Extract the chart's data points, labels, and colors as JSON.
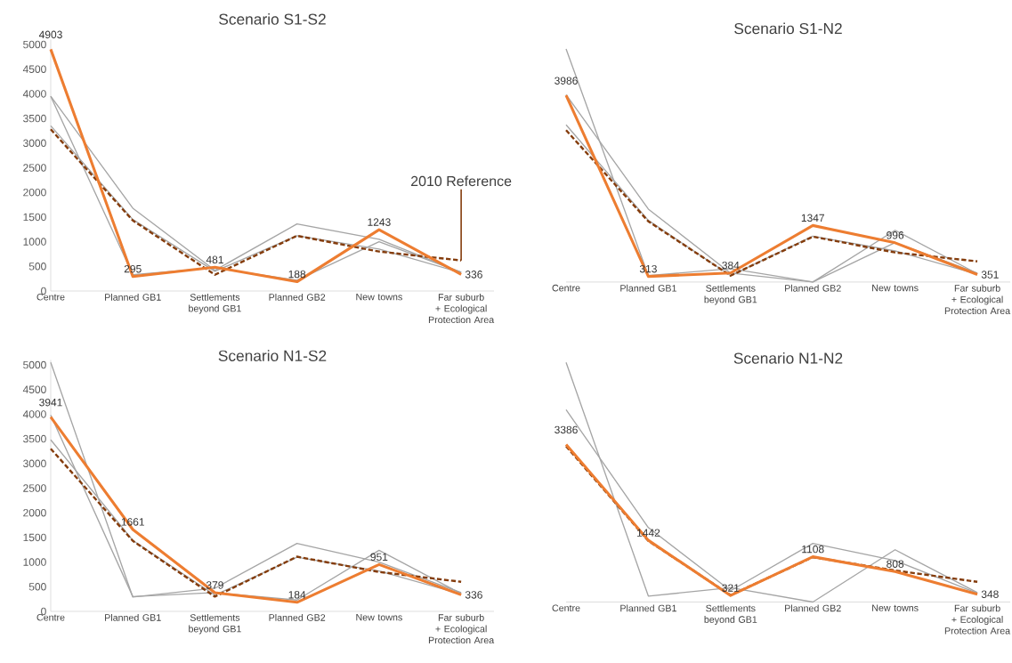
{
  "chart_data": [
    {
      "type": "line",
      "title": "Scenario S1-S2",
      "categories": [
        "Centre",
        "Planned GB1",
        "Settlements beyond GB1",
        "Planned GB2",
        "New towns",
        "Far suburb + Ecological Protection Area"
      ],
      "ylim": [
        0,
        5100
      ],
      "yticks": [
        0,
        500,
        1000,
        1500,
        2000,
        2500,
        3000,
        3500,
        4000,
        4500,
        5000
      ],
      "annotations": [
        {
          "text": "2010 Reference",
          "x": "Far suburb + Ecological Protection Area",
          "y": 620
        }
      ],
      "series": [
        {
          "color": "#a5a5a5",
          "values": [
            3950,
            1680,
            420,
            1360,
            1050,
            380
          ]
        },
        {
          "color": "#a5a5a5",
          "values": [
            3950,
            330,
            470,
            220,
            1000,
            380
          ]
        },
        {
          "color": "#a5a5a5",
          "values": [
            3350,
            1450,
            400,
            1120,
            850,
            370
          ]
        },
        {
          "color": "#843c0c",
          "line_style": "dashed",
          "values": [
            3280,
            1430,
            330,
            1120,
            800,
            620
          ]
        },
        {
          "color": "#ed7d31",
          "values": [
            4903,
            295,
            481,
            188,
            1243,
            336
          ],
          "value_labels": [
            "4903",
            "295",
            "481",
            "188",
            "1243",
            "336"
          ]
        }
      ]
    },
    {
      "type": "line",
      "title": "Scenario S1-N2",
      "categories": [
        "Centre",
        "Planned GB1",
        "Settlements beyond GB1",
        "Planned GB2",
        "New towns",
        "Far suburb + Ecological Protection Area"
      ],
      "tick_labels": "x",
      "series": [
        {
          "color": "#a5a5a5",
          "values": [
            4930,
            330,
            470,
            200,
            1000,
            380
          ]
        },
        {
          "color": "#a5a5a5",
          "values": [
            4000,
            1680,
            380,
            200,
            1250,
            370
          ]
        },
        {
          "color": "#a5a5a5",
          "values": [
            3390,
            1450,
            330,
            1130,
            830,
            360
          ]
        },
        {
          "color": "#843c0c",
          "line_style": "dashed",
          "values": [
            3280,
            1430,
            330,
            1120,
            800,
            620
          ]
        },
        {
          "color": "#ed7d31",
          "values": [
            3986,
            313,
            384,
            1347,
            996,
            351
          ],
          "value_labels": [
            "3986",
            "313",
            "384",
            "1347",
            "996",
            "351"
          ]
        }
      ]
    },
    {
      "type": "line",
      "title": "Scenario N1-S2",
      "categories": [
        "Centre",
        "Planned GB1",
        "Settlements beyond GB1",
        "Planned GB2",
        "New towns",
        "Far suburb + Ecological Protection Area"
      ],
      "ylim": [
        0,
        5100
      ],
      "yticks": [
        0,
        500,
        1000,
        1500,
        2000,
        2500,
        3000,
        3500,
        4000,
        4500,
        5000
      ],
      "series": [
        {
          "color": "#a5a5a5",
          "values": [
            5050,
            290,
            470,
            1380,
            1000,
            380
          ]
        },
        {
          "color": "#a5a5a5",
          "values": [
            3980,
            300,
            380,
            230,
            1240,
            360
          ]
        },
        {
          "color": "#a5a5a5",
          "values": [
            3480,
            1440,
            330,
            1100,
            820,
            350
          ]
        },
        {
          "color": "#843c0c",
          "line_style": "dashed",
          "values": [
            3300,
            1430,
            300,
            1110,
            800,
            600
          ]
        },
        {
          "color": "#ed7d31",
          "values": [
            3941,
            1661,
            379,
            184,
            951,
            336
          ],
          "value_labels": [
            "3941",
            "1661",
            "379",
            "184",
            "951",
            "336"
          ]
        }
      ]
    },
    {
      "type": "line",
      "title": "Scenario N1-N2",
      "categories": [
        "Centre",
        "Planned GB1",
        "Settlements beyond GB1",
        "Planned GB2",
        "New towns",
        "Far suburb + Ecological Protection Area"
      ],
      "tick_labels": "x",
      "series": [
        {
          "color": "#a5a5a5",
          "values": [
            5050,
            310,
            480,
            190,
            1250,
            380
          ]
        },
        {
          "color": "#a5a5a5",
          "values": [
            4090,
            1700,
            420,
            1380,
            1030,
            370
          ]
        },
        {
          "color": "#843c0c",
          "line_style": "dashed",
          "values": [
            3350,
            1430,
            330,
            1100,
            830,
            600
          ]
        },
        {
          "color": "#ed7d31",
          "values": [
            3386,
            1442,
            321,
            1108,
            808,
            348
          ],
          "value_labels": [
            "3386",
            "1442",
            "321",
            "1108",
            "808",
            "348"
          ]
        }
      ]
    }
  ]
}
